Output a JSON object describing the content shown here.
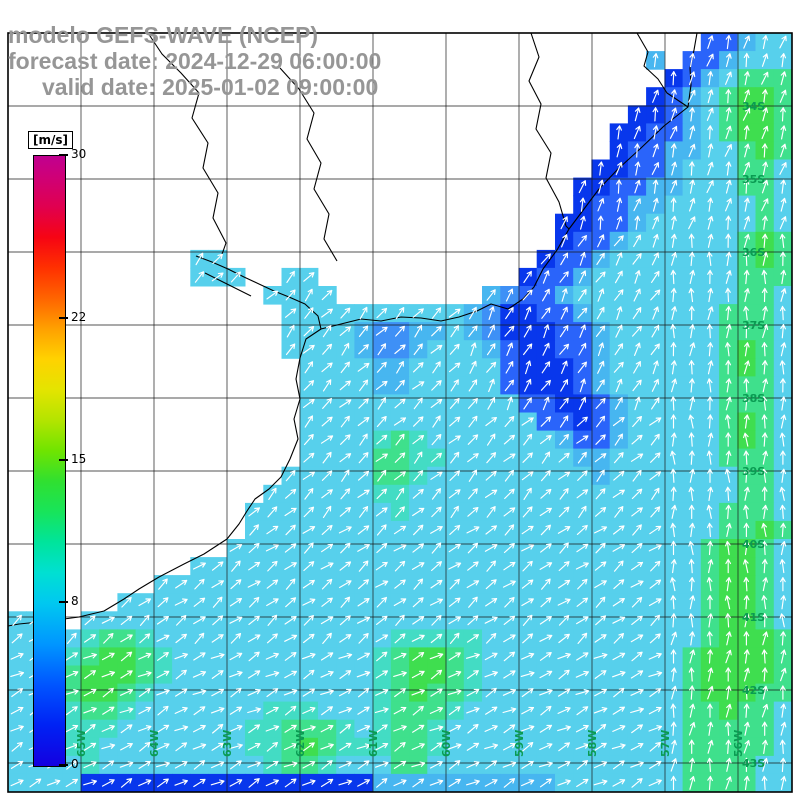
{
  "header": {
    "model_line": "modelo GEFS-WAVE (NCEP)",
    "forecast_line": "forecast date: 2024-12-29 06:00:00",
    "valid_line": "valid date: 2025-01-02 09:00:00"
  },
  "colorbar": {
    "unit": "[m/s]",
    "min": 0,
    "max": 30,
    "ticks": [
      30,
      22,
      15,
      8,
      0
    ],
    "stops": [
      {
        "value": 0,
        "color": "#1400E0"
      },
      {
        "value": 2,
        "color": "#0022F4"
      },
      {
        "value": 4,
        "color": "#0055FF"
      },
      {
        "value": 6,
        "color": "#0096FF"
      },
      {
        "value": 8,
        "color": "#00C8F0"
      },
      {
        "value": 9.5,
        "color": "#00E0D2"
      },
      {
        "value": 11,
        "color": "#00E49B"
      },
      {
        "value": 12.5,
        "color": "#18E45A"
      },
      {
        "value": 14,
        "color": "#30E030"
      },
      {
        "value": 15.5,
        "color": "#70E400"
      },
      {
        "value": 17,
        "color": "#B4E400"
      },
      {
        "value": 18.5,
        "color": "#E4E400"
      },
      {
        "value": 20,
        "color": "#FFD200"
      },
      {
        "value": 21.5,
        "color": "#FFA000"
      },
      {
        "value": 23,
        "color": "#FF6400"
      },
      {
        "value": 24.5,
        "color": "#FF3000"
      },
      {
        "value": 26,
        "color": "#F60414"
      },
      {
        "value": 27.5,
        "color": "#E00050"
      },
      {
        "value": 29,
        "color": "#CE0078"
      },
      {
        "value": 30,
        "color": "#C00090"
      }
    ]
  },
  "map": {
    "label_color": "#0A9B52",
    "lat_labels": [
      "34S",
      "35S",
      "36S",
      "37S",
      "38S",
      "39S",
      "40S",
      "41S",
      "42S",
      "43S"
    ],
    "lon_labels": [
      "65W",
      "64W",
      "63W",
      "62W",
      "61W",
      "60W",
      "59W",
      "58W",
      "57W",
      "56W"
    ],
    "coastlines": [
      {
        "name": "coastline-main",
        "points": [
          [
            637,
            33
          ],
          [
            648,
            52
          ],
          [
            644,
            66
          ],
          [
            658,
            79
          ],
          [
            667,
            93
          ],
          [
            688,
            107
          ],
          [
            664,
            126
          ],
          [
            641,
            148
          ],
          [
            618,
            169
          ],
          [
            599,
            189
          ],
          [
            584,
            209
          ],
          [
            569,
            229
          ],
          [
            557,
            250
          ],
          [
            543,
            269
          ],
          [
            534,
            287
          ],
          [
            523,
            299
          ],
          [
            508,
            309
          ],
          [
            491,
            304
          ],
          [
            477,
            311
          ],
          [
            459,
            317
          ],
          [
            441,
            321
          ],
          [
            421,
            318
          ],
          [
            401,
            317
          ],
          [
            381,
            321
          ],
          [
            361,
            319
          ],
          [
            341,
            324
          ],
          [
            321,
            329
          ],
          [
            306,
            339
          ],
          [
            300,
            358
          ],
          [
            296,
            379
          ],
          [
            300,
            399
          ],
          [
            294,
            419
          ],
          [
            298,
            439
          ],
          [
            290,
            459
          ],
          [
            281,
            477
          ],
          [
            269,
            489
          ],
          [
            255,
            499
          ],
          [
            247,
            511
          ],
          [
            239,
            524
          ],
          [
            227,
            539
          ],
          [
            204,
            554
          ],
          [
            184,
            564
          ],
          [
            159,
            577
          ],
          [
            139,
            589
          ],
          [
            124,
            599
          ],
          [
            104,
            611
          ],
          [
            79,
            617
          ],
          [
            49,
            621
          ],
          [
            19,
            624
          ],
          [
            8,
            626
          ]
        ]
      },
      {
        "name": "coastline-estuary-east-bank",
        "points": [
          [
            697,
            33
          ],
          [
            694,
            50
          ],
          [
            690,
            68
          ],
          [
            691,
            85
          ],
          [
            688,
            107
          ]
        ]
      },
      {
        "name": "coastline-bay-north-shore",
        "points": [
          [
            196,
            256
          ],
          [
            212,
            262
          ],
          [
            228,
            269
          ],
          [
            244,
            277
          ],
          [
            259,
            284
          ],
          [
            274,
            291
          ],
          [
            289,
            297
          ],
          [
            305,
            304
          ],
          [
            318,
            316
          ],
          [
            321,
            329
          ]
        ]
      },
      {
        "name": "coastline-bay-islands",
        "points": [
          [
            205,
            273
          ],
          [
            221,
            281
          ],
          [
            237,
            289
          ],
          [
            251,
            296
          ]
        ]
      },
      {
        "name": "river-line-west",
        "points": [
          [
            148,
            33
          ],
          [
            162,
            54
          ],
          [
            181,
            73
          ],
          [
            199,
            93
          ],
          [
            192,
            118
          ],
          [
            208,
            143
          ],
          [
            203,
            168
          ],
          [
            218,
            193
          ],
          [
            213,
            218
          ],
          [
            226,
            243
          ],
          [
            221,
            257
          ]
        ]
      },
      {
        "name": "river-line-center",
        "points": [
          [
            280,
            68
          ],
          [
            299,
            89
          ],
          [
            314,
            113
          ],
          [
            307,
            139
          ],
          [
            321,
            163
          ],
          [
            314,
            189
          ],
          [
            329,
            214
          ],
          [
            324,
            239
          ],
          [
            337,
            261
          ]
        ]
      },
      {
        "name": "river-line-east",
        "points": [
          [
            531,
            33
          ],
          [
            539,
            57
          ],
          [
            529,
            81
          ],
          [
            541,
            104
          ],
          [
            536,
            129
          ],
          [
            551,
            153
          ],
          [
            546,
            178
          ],
          [
            559,
            202
          ],
          [
            566,
            226
          ],
          [
            569,
            229
          ]
        ]
      }
    ]
  },
  "chart_data": {
    "type": "heatmap",
    "title": "modelo GEFS-WAVE (NCEP)",
    "subtitle_forecast": "forecast date: 2024-12-29 06:00:00",
    "subtitle_valid": "valid date: 2025-01-02 09:00:00",
    "units": "m/s",
    "colorbar_range": [
      0,
      30
    ],
    "grid_rows": 42,
    "grid_cols": 43,
    "legend": "each character is one grid cell of 10m wind speed; '.' = land (white); letters map to palette colors/speeds; white arrows give wind direction",
    "palette": {
      "B": {
        "color": "#0837EC",
        "speed_ms": 3
      },
      "b": {
        "color": "#2A64FA",
        "speed_ms": 5
      },
      "d": {
        "color": "#3E90F6",
        "speed_ms": 6
      },
      "C": {
        "color": "#47B6F0",
        "speed_ms": 7
      },
      "c": {
        "color": "#57D0EC",
        "speed_ms": 8
      },
      "t": {
        "color": "#43DCC4",
        "speed_ms": 9
      },
      "g": {
        "color": "#3FE08C",
        "speed_ms": 11
      },
      "G": {
        "color": "#3FDE4F",
        "speed_ms": 13
      }
    },
    "field": [
      "......................................bbCcc",
      "...................................C.bbCccc",
      "....................................BbCcggg",
      "...................................BbCcgGGg",
      "..................................BBbCcgGGg",
      ".................................BBbbCcgGGg",
      ".................................BbbCCccgGg",
      "................................BBbbCcccggc",
      "...............................BBbbCCcccggc",
      "...............................BbbCCcccccgc",
      "..............................BBbbCccccccgc",
      "..............................BbbCccccccgGg",
      "..........cc.................BbbCcccccccgGg",
      "..........ccc..cc...........BbbCccccccccggg",
      "..............cccc........CdbbCcccccccccggc",
      "...............ccccccccccCdBBbbCcccccccgggc",
      "...............ccccCddCCcCdBBBbbCccccccgggc",
      "...............ccccCddCcccCbBBbbCccccccgGgc",
      "................ccccCCcccccbBBBbCccccccgGgc",
      "................ccccCCcccccbBBBbCccccccgggc",
      "................ccccccccccccbbBBbCcccccgggc",
      "................cccccccccccccbbBbCcccccgGgc",
      "................cccctgtcccccccCbbCcccccgGgc",
      "................ccccggttcccccccCCccccccgggc",
      "...............cccccggtcccccccccCcccccccggc",
      "..............ccccccttccccccccccccccccccggc",
      ".............cccccccctcccccccccccccccccgggc",
      ".............ccccccccccccccccccccccccccggGgc",
      "............ccccccccccccccccccccccccccgGGgc",
      "..........ccccccccccccccccccccccccccccgGGgc",
      "........ccccccccccccccccccccccccccccccgGGgc",
      "......ccccccccccccccccccccccccccccccccgGGgc",
      "cc..ccccccccccccccccccccccccccccccccccgGGgc",
      "cccctggtccccccccccccctttttccccccccccccgGGGg",
      "ccctgGGgtccccccccccctgGGgtcccccccccccgGGGGg",
      "cctgGGGgtccccccccccctgGGgtcccccccccccgGGGGg",
      "cctgGGgtcccccccccccctgGggtcccccccccccgGGGgg",
      "ccctggtccccccctttccctgggtccccccccccccggGggc",
      "ccctttcccccccttgggtctggtcccccccccccccgggggc",
      "cccttccccccccttgGgtttggtcccccccccccccgggggc",
      "cccctccccccccctggtcccggccccccccccccccggggcc",
      "ccccBBBBBBBBBBBBBBBBCCCCCCCCCCcccccccggggcc"
    ],
    "arrow_color": "#ffffff",
    "arrow_default_angle_deg": 40,
    "arrow_zones": [
      {
        "rows": [
          0,
          10
        ],
        "cols": [
          30,
          42
        ],
        "angle_deg": 75
      },
      {
        "rows": [
          11,
          20
        ],
        "cols": [
          36,
          42
        ],
        "angle_deg": 85
      },
      {
        "rows": [
          21,
          32
        ],
        "cols": [
          36,
          42
        ],
        "angle_deg": 90
      },
      {
        "rows": [
          33,
          41
        ],
        "cols": [
          36,
          42
        ],
        "angle_deg": 82
      },
      {
        "rows": [
          11,
          20
        ],
        "cols": [
          25,
          35
        ],
        "angle_deg": 60
      },
      {
        "rows": [
          12,
          18
        ],
        "cols": [
          8,
          24
        ],
        "angle_deg": 48
      },
      {
        "rows": [
          19,
          26
        ],
        "cols": [
          13,
          35
        ],
        "angle_deg": 45
      },
      {
        "rows": [
          27,
          33
        ],
        "cols": [
          0,
          35
        ],
        "angle_deg": 38
      },
      {
        "rows": [
          34,
          41
        ],
        "cols": [
          0,
          35
        ],
        "angle_deg": 28
      }
    ]
  }
}
